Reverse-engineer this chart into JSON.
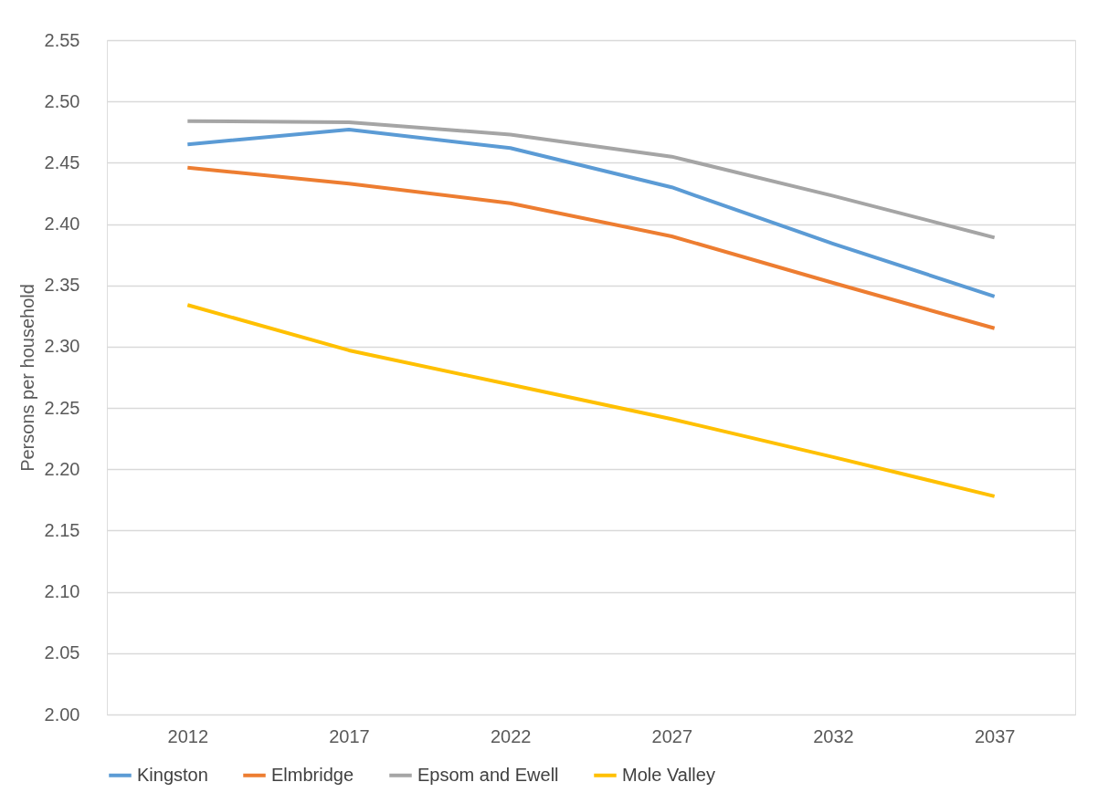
{
  "chart_data": {
    "type": "line",
    "ylabel": "Persons per household",
    "categories": [
      "2012",
      "2017",
      "2022",
      "2027",
      "2032",
      "2037"
    ],
    "series": [
      {
        "name": "Kingston",
        "color": "#5b9bd5",
        "values": [
          2.465,
          2.477,
          2.462,
          2.43,
          2.384,
          2.341
        ]
      },
      {
        "name": "Elmbridge",
        "color": "#ed7d31",
        "values": [
          2.446,
          2.433,
          2.417,
          2.39,
          2.352,
          2.315
        ]
      },
      {
        "name": "Epsom and Ewell",
        "color": "#a5a5a5",
        "values": [
          2.484,
          2.483,
          2.473,
          2.455,
          2.423,
          2.389
        ]
      },
      {
        "name": "Mole Valley",
        "color": "#ffc000",
        "values": [
          2.334,
          2.297,
          2.269,
          2.241,
          2.21,
          2.178
        ]
      }
    ],
    "ylim": [
      2.0,
      2.55
    ],
    "yticks": [
      {
        "value": 2.0,
        "label": "2.00"
      },
      {
        "value": 2.05,
        "label": "2.05"
      },
      {
        "value": 2.1,
        "label": "2.10"
      },
      {
        "value": 2.15,
        "label": "2.15"
      },
      {
        "value": 2.2,
        "label": "2.20"
      },
      {
        "value": 2.25,
        "label": "2.25"
      },
      {
        "value": 2.3,
        "label": "2.30"
      },
      {
        "value": 2.35,
        "label": "2.35"
      },
      {
        "value": 2.4,
        "label": "2.40"
      },
      {
        "value": 2.45,
        "label": "2.45"
      },
      {
        "value": 2.5,
        "label": "2.50"
      },
      {
        "value": 2.55,
        "label": "2.55"
      }
    ],
    "grid": "y",
    "legend": "bottom",
    "marker": "none",
    "line_style": "solid"
  }
}
